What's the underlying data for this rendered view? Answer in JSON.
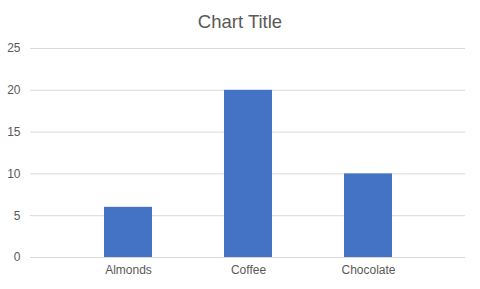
{
  "chart_data": {
    "type": "bar",
    "title": "Chart Title",
    "categories": [
      "Almonds",
      "Coffee",
      "Chocolate"
    ],
    "values": [
      6,
      20,
      10
    ],
    "color": "#4472c4",
    "ylim": [
      0,
      25
    ],
    "yticks": [
      0,
      5,
      10,
      15,
      20,
      25
    ],
    "grid": true
  }
}
